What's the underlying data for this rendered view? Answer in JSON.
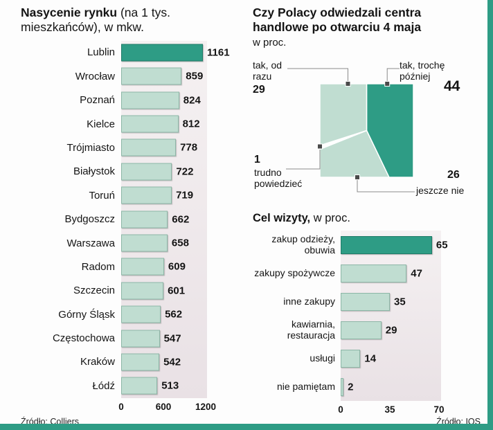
{
  "colors": {
    "dark": "#2E9C85",
    "light": "#C0DDD1",
    "sliver": "#FFFFFF",
    "frame": "#2E9C85",
    "panel_top": "#F5F1F2",
    "panel_bottom": "#E9E1E5"
  },
  "ui": {
    "left_title_bold": "Nasycenie rynku",
    "left_title_rest": " (na 1 tys. mieszkańców), w mkw.",
    "pie_title_bold": "Czy Polacy odwiedzali centra handlowe po otwarciu 4 maja",
    "pie_title_rest": "w proc.",
    "visits_title_bold": "Cel wizyty,",
    "visits_title_rest": " w proc."
  },
  "chart_data": [
    {
      "type": "bar",
      "orientation": "horizontal",
      "title": "Nasycenie rynku (na 1 tys. mieszkańców), w mkw.",
      "categories": [
        "Lublin",
        "Wrocław",
        "Poznań",
        "Kielce",
        "Trójmiasto",
        "Białystok",
        "Toruń",
        "Bydgoszcz",
        "Warszawa",
        "Radom",
        "Szczecin",
        "Górny Śląsk",
        "Częstochowa",
        "Kraków",
        "Łódź"
      ],
      "values": [
        1161,
        859,
        824,
        812,
        778,
        722,
        719,
        662,
        658,
        609,
        601,
        562,
        547,
        542,
        513
      ],
      "xlim": [
        0,
        1200
      ],
      "ticks": [
        0,
        600,
        1200
      ],
      "highlight_index": 0,
      "source": "Źródło: Colliers"
    },
    {
      "type": "pie",
      "title": "Czy Polacy odwiedzali centra handlowe po otwarciu 4 maja, w proc.",
      "slices": [
        {
          "label": "tak, trochę później",
          "value": 44,
          "tone": "dark"
        },
        {
          "label": "jeszcze nie",
          "value": 26,
          "tone": "light"
        },
        {
          "label": "trudno powiedzieć",
          "value": 1,
          "tone": "white"
        },
        {
          "label": "tak, od razu",
          "value": 29,
          "tone": "light"
        }
      ]
    },
    {
      "type": "bar",
      "orientation": "horizontal",
      "title": "Cel wizyty, w proc.",
      "categories": [
        "zakup odzieży, obuwia",
        "zakupy spożywcze",
        "inne zakupy",
        "kawiarnia, restauracja",
        "usługi",
        "nie pamiętam"
      ],
      "values": [
        65,
        47,
        35,
        29,
        14,
        2
      ],
      "xlim": [
        0,
        70
      ],
      "ticks": [
        0,
        35,
        70
      ],
      "highlight_index": 0,
      "source": "Źródło: IQS"
    }
  ]
}
